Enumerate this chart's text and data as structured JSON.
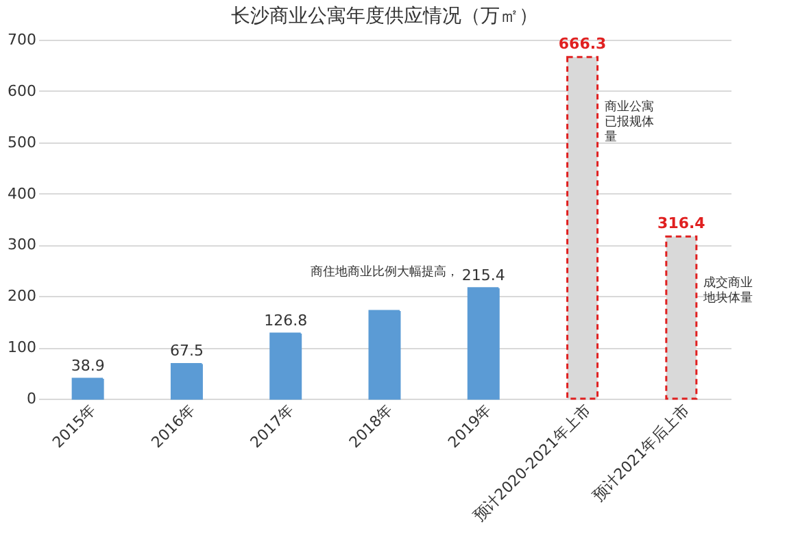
{
  "chart_data": {
    "type": "bar",
    "title": "长沙商业公寓年度供应情况（万㎡）",
    "categories": [
      "2015年",
      "2016年",
      "2017年",
      "2018年",
      "2019年",
      "预计2020-2021年上市",
      "预计2021年后上市"
    ],
    "series": [
      {
        "color": "#5b9bd5",
        "values": [
          38.9,
          67.5,
          126.8,
          171,
          215.4,
          null,
          null
        ],
        "value_labels": [
          "38.9",
          "67.5",
          "126.8",
          null,
          "215.4",
          null,
          null
        ]
      },
      {
        "color": "#d9d9d9",
        "line_style": "dashed",
        "values": [
          null,
          null,
          null,
          null,
          null,
          666.3,
          316.4
        ],
        "value_labels": [
          null,
          null,
          null,
          null,
          null,
          "666.3",
          "316.4"
        ]
      }
    ],
    "ylim": [
      0,
      700
    ],
    "yticks": [
      0,
      100,
      200,
      300,
      400,
      500,
      600,
      700
    ],
    "grid": "y",
    "annotations": [
      "商业公寓已报规体量",
      "成交商业地块体量",
      "商住地商业比例大幅提高，"
    ]
  }
}
